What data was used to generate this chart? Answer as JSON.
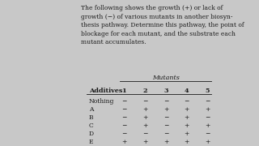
{
  "title_text": "The following shows the growth (+) or lack of\ngrowth (−) of various mutants in another biosyn-\nthesis pathway. Determine this pathway, the point of\nblockage for each mutant, and the substrate each\nmutant accumulates.",
  "mutants_label": "Mutants",
  "col_headers": [
    "Additives",
    "1",
    "2",
    "3",
    "4",
    "5"
  ],
  "rows": [
    [
      "Nothing",
      "−",
      "−",
      "−",
      "−",
      "−"
    ],
    [
      "A",
      "−",
      "+",
      "+",
      "+",
      "+"
    ],
    [
      "B",
      "−",
      "+",
      "−",
      "+",
      "−"
    ],
    [
      "C",
      "−",
      "+",
      "−",
      "+",
      "+"
    ],
    [
      "D",
      "−",
      "−",
      "−",
      "+",
      "−"
    ],
    [
      "E",
      "+",
      "+",
      "+",
      "+",
      "+"
    ]
  ],
  "bg_color": "#c8c8c8",
  "text_color": "#1a1a1a",
  "title_fontsize": 5.5,
  "table_fontsize": 5.5,
  "header_fontsize": 5.8
}
